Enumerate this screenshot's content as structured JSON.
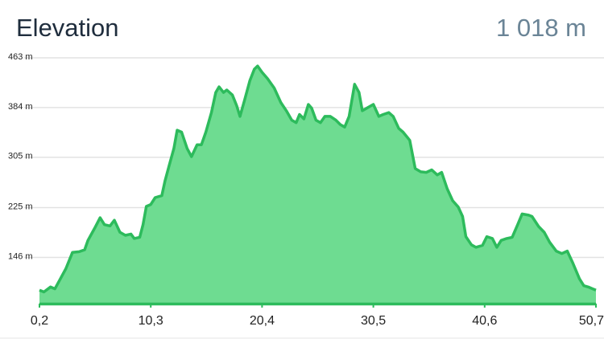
{
  "chart_data": {
    "type": "area",
    "title": "Elevation",
    "annotation": "1 018 m",
    "color": "#2dbb5c",
    "fill": "#6edc91",
    "grid": true,
    "x": [
      0.2,
      0.6,
      1.2,
      1.6,
      2.1,
      2.6,
      3.2,
      3.8,
      4.3,
      4.6,
      5.2,
      5.7,
      6.1,
      6.6,
      7.0,
      7.5,
      8.0,
      8.5,
      8.8,
      9.3,
      9.6,
      9.9,
      10.3,
      10.7,
      11.3,
      11.6,
      12.0,
      12.4,
      12.7,
      13.1,
      13.6,
      14.0,
      14.5,
      14.9,
      15.3,
      15.8,
      16.2,
      16.5,
      16.9,
      17.2,
      17.7,
      18.1,
      18.4,
      18.8,
      19.3,
      19.7,
      20.0,
      20.4,
      20.9,
      21.5,
      22.1,
      22.6,
      23.1,
      23.5,
      23.8,
      24.2,
      24.6,
      24.9,
      25.3,
      25.7,
      26.1,
      26.6,
      27.1,
      27.5,
      27.9,
      28.3,
      28.8,
      29.2,
      29.5,
      29.9,
      30.5,
      31.0,
      31.4,
      31.9,
      32.3,
      32.8,
      33.2,
      33.8,
      34.3,
      34.8,
      35.3,
      35.8,
      36.3,
      36.7,
      37.2,
      37.7,
      38.2,
      38.6,
      38.9,
      39.4,
      39.8,
      40.4,
      40.8,
      41.3,
      41.7,
      42.1,
      42.6,
      43.1,
      43.6,
      44.0,
      44.6,
      44.9,
      45.5,
      46.0,
      46.5,
      47.1,
      47.6,
      48.1,
      48.6,
      49.2,
      49.6,
      50.0,
      50.4,
      50.7
    ],
    "values": [
      94,
      91,
      99,
      96,
      112,
      128,
      154,
      155,
      158,
      173,
      192,
      209,
      198,
      196,
      205,
      186,
      181,
      183,
      176,
      178,
      198,
      227,
      230,
      241,
      244,
      268,
      294,
      319,
      348,
      345,
      319,
      306,
      325,
      325,
      345,
      376,
      408,
      417,
      408,
      412,
      404,
      387,
      370,
      395,
      427,
      445,
      450,
      440,
      430,
      415,
      392,
      379,
      364,
      360,
      373,
      366,
      389,
      383,
      364,
      360,
      370,
      370,
      364,
      357,
      353,
      370,
      421,
      408,
      379,
      383,
      389,
      370,
      373,
      376,
      370,
      351,
      345,
      332,
      287,
      282,
      281,
      285,
      277,
      281,
      255,
      236,
      226,
      211,
      179,
      166,
      162,
      165,
      179,
      176,
      162,
      173,
      176,
      178,
      198,
      215,
      213,
      211,
      195,
      186,
      170,
      156,
      152,
      156,
      137,
      112,
      101,
      99,
      96,
      94
    ],
    "xlim": [
      0.2,
      50.7
    ],
    "xticks": [
      {
        "value": 0.2,
        "label": "0,2"
      },
      {
        "value": 10.3,
        "label": "10,3"
      },
      {
        "value": 20.4,
        "label": "20,4"
      },
      {
        "value": 30.5,
        "label": "30,5"
      },
      {
        "value": 40.6,
        "label": "40,6"
      },
      {
        "value": 50.7,
        "label": "50,7"
      }
    ],
    "ylim": [
      70,
      463
    ],
    "yticks": [
      {
        "value": 146,
        "label": "146 m"
      },
      {
        "value": 225,
        "label": "225 m"
      },
      {
        "value": 305,
        "label": "305 m"
      },
      {
        "value": 384,
        "label": "384 m"
      },
      {
        "value": 463,
        "label": "463 m"
      }
    ]
  }
}
